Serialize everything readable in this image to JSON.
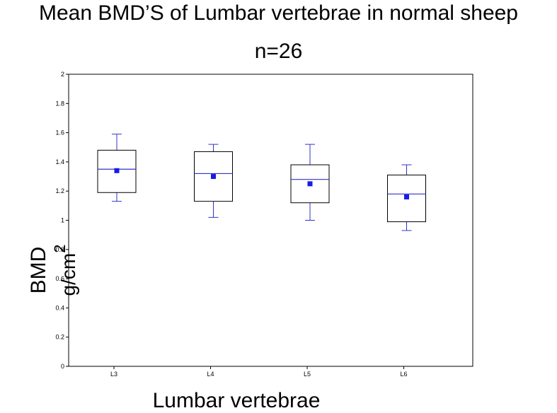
{
  "chart_data": {
    "type": "box",
    "title": "Mean BMD’S of Lumbar vertebrae in normal sheep",
    "subtitle": "n=26",
    "xlabel": "Lumbar vertebrae",
    "ylabel": {
      "main": "BMD",
      "unit": "g/cm",
      "unit_superscript": "2"
    },
    "ylim": [
      0,
      2
    ],
    "yticks": [
      "0",
      "0.2",
      "0.4",
      "0.6",
      "0.8",
      "1",
      "1.2",
      "1.4",
      "1.6",
      "1.8",
      "2"
    ],
    "grid": false,
    "colors": {
      "whisker": "#3333cc",
      "median": "#3333cc",
      "mean": "#1a1ae6",
      "box": "#000000"
    },
    "categories": [
      "L3",
      "L4",
      "L5",
      "L6"
    ],
    "boxes": [
      {
        "label": "L3",
        "min": 1.13,
        "q1": 1.19,
        "median": 1.35,
        "q3": 1.48,
        "max": 1.59,
        "mean": 1.34
      },
      {
        "label": "L4",
        "min": 1.02,
        "q1": 1.13,
        "median": 1.32,
        "q3": 1.47,
        "max": 1.52,
        "mean": 1.3
      },
      {
        "label": "L5",
        "min": 1.0,
        "q1": 1.12,
        "median": 1.28,
        "q3": 1.38,
        "max": 1.52,
        "mean": 1.25
      },
      {
        "label": "L6",
        "min": 0.93,
        "q1": 0.99,
        "median": 1.18,
        "q3": 1.31,
        "max": 1.38,
        "mean": 1.16
      }
    ]
  }
}
